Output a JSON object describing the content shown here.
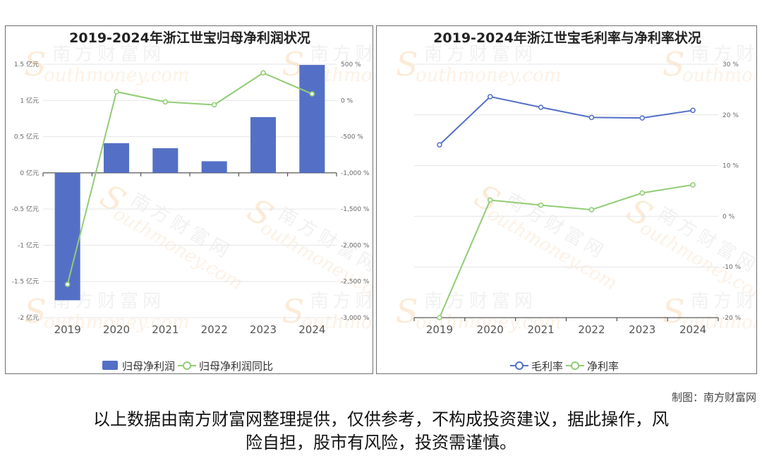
{
  "charts": [
    {
      "title": "2019-2024年浙江世宝归母净利润状况",
      "legend": [
        {
          "label": "归母净利润",
          "color": "#5470c6",
          "marker": "bar"
        },
        {
          "label": "归母净利润同比",
          "color": "#91cc75",
          "marker": "line"
        }
      ]
    },
    {
      "title": "2019-2024年浙江世宝毛利率与净利率状况",
      "legend": [
        {
          "label": "毛利率",
          "color": "#5470c6",
          "marker": "line"
        },
        {
          "label": "净利率",
          "color": "#91cc75",
          "marker": "line"
        }
      ]
    }
  ],
  "chart_data": [
    {
      "type": "bar",
      "title": "2019-2024年浙江世宝归母净利润状况",
      "categories": [
        "2019",
        "2020",
        "2021",
        "2022",
        "2023",
        "2024"
      ],
      "y_left": {
        "ticks": [
          1.5,
          1,
          0.5,
          0,
          -0.5,
          -1,
          -1.5,
          -2
        ],
        "tick_labels": [
          "1.5 亿元",
          "1 亿元",
          "0.5 亿元",
          "0 亿元",
          "-0.5 亿元",
          "-1 亿元",
          "-1.5 亿元",
          "-2 亿元"
        ],
        "range": [
          -2,
          1.5
        ]
      },
      "y_right": {
        "ticks": [
          500,
          0,
          -500,
          -1000,
          -1500,
          -2000,
          -2500,
          -3000
        ],
        "tick_labels": [
          "500 %",
          "0 %",
          "-500 %",
          "-1,000 %",
          "-1,500 %",
          "-2,000 %",
          "-2,500 %",
          "-3,000 %"
        ],
        "range": [
          -3000,
          500
        ]
      },
      "series": [
        {
          "name": "归母净利润",
          "type": "bar",
          "axis": "left",
          "color": "#5470c6",
          "values": [
            -1.76,
            0.41,
            0.34,
            0.16,
            0.77,
            1.49
          ]
        },
        {
          "name": "归母净利润同比",
          "type": "line",
          "axis": "right",
          "color": "#91cc75",
          "values": [
            -2540,
            120,
            -20,
            -60,
            380,
            90
          ]
        }
      ],
      "grid": true,
      "legend_position": "bottom"
    },
    {
      "type": "line",
      "title": "2019-2024年浙江世宝毛利率与净利率状况",
      "categories": [
        "2019",
        "2020",
        "2021",
        "2022",
        "2023",
        "2024"
      ],
      "y_right": {
        "ticks": [
          30,
          20,
          10,
          0,
          -10,
          -20
        ],
        "tick_labels": [
          "30 %",
          "20 %",
          "10 %",
          "0 %",
          "-10 %",
          "-20 %"
        ],
        "range": [
          -20,
          30
        ]
      },
      "series": [
        {
          "name": "毛利率",
          "type": "line",
          "axis": "right",
          "color": "#5470c6",
          "values": [
            14.1,
            23.6,
            21.5,
            19.5,
            19.4,
            20.9
          ]
        },
        {
          "name": "净利率",
          "type": "line",
          "axis": "right",
          "color": "#91cc75",
          "values": [
            -20.0,
            3.2,
            2.2,
            1.3,
            4.6,
            6.2
          ]
        }
      ],
      "grid": true,
      "legend_position": "bottom"
    }
  ],
  "watermark": {
    "cn": "南方财富网",
    "en": "outhmoney.com",
    "letter": "S"
  },
  "credit": "制图：南方财富网",
  "disclaimer": {
    "line1": "以上数据由南方财富网整理提供，仅供参考，不构成投资建议，据此操作，风",
    "line2": "险自担，股市有风险，投资需谨慎。"
  }
}
